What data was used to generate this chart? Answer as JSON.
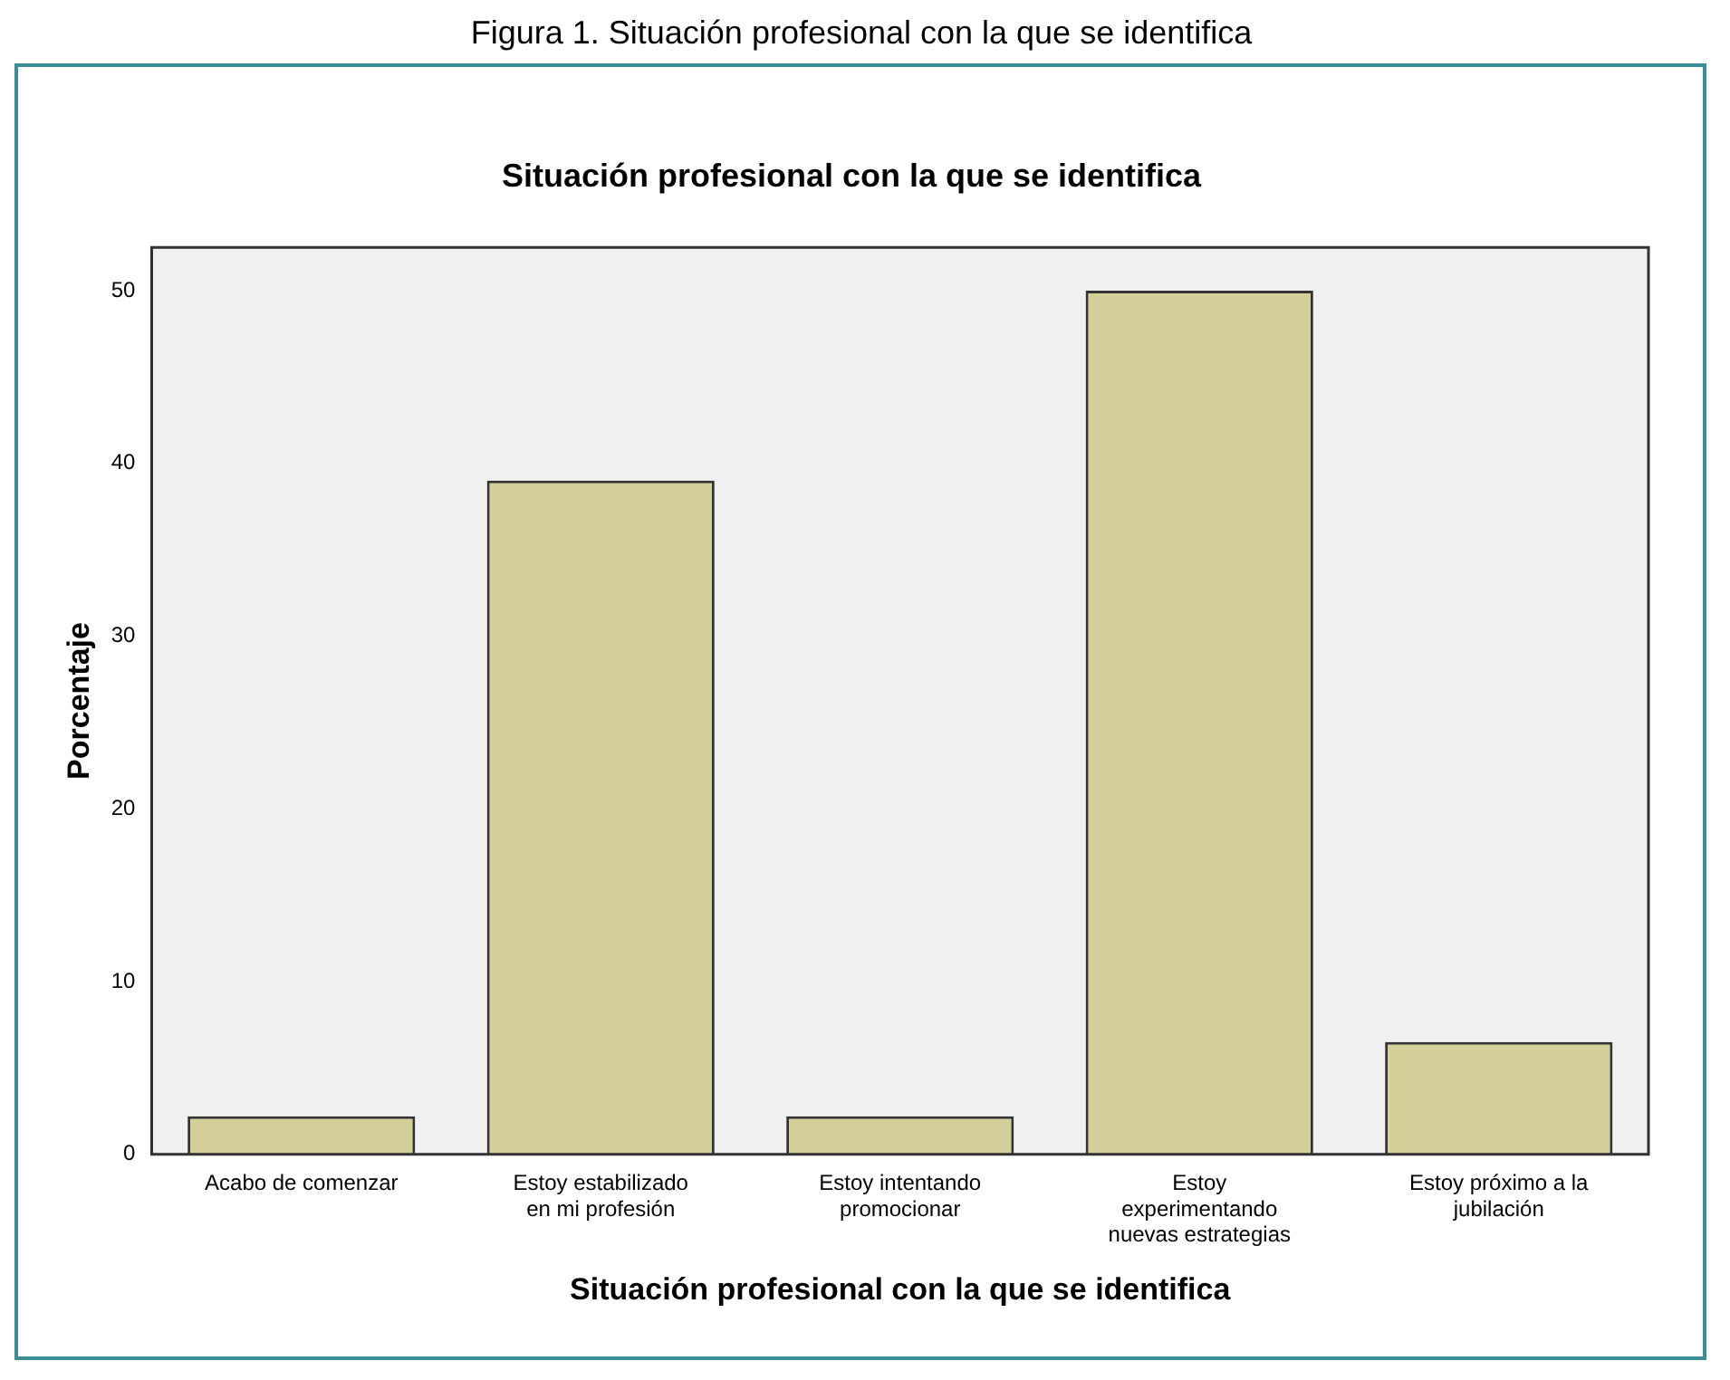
{
  "chart_data": {
    "type": "bar",
    "title": "Situación profesional con la que se identifica",
    "xlabel": "Situación profesional con la que se identifica",
    "ylabel": "Porcentaje",
    "annotations": [
      "Figura 1. Situación profesional con la que se identifica"
    ],
    "categories": [
      "Acabo de comenzar",
      "Estoy estabilizado en mi profesión",
      "Estoy intentando promocionar",
      "Estoy experimentando nuevas estrategias",
      "Estoy próximo a la jubilación"
    ],
    "values": [
      2.2,
      39.0,
      2.2,
      50.0,
      6.5
    ],
    "color": "#d4cf98",
    "ylim": [
      0,
      52.5
    ],
    "yticks": [
      0,
      10,
      20,
      30,
      40,
      50
    ],
    "grid": false,
    "legend": false
  }
}
